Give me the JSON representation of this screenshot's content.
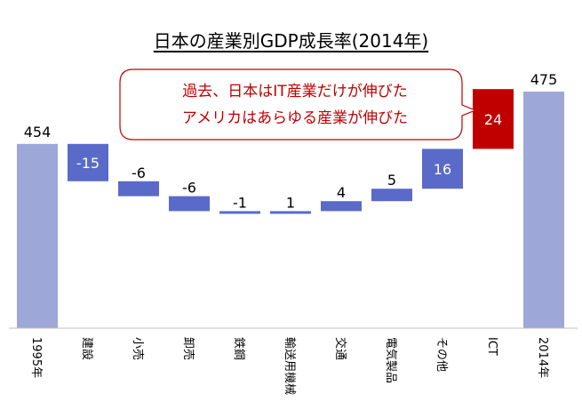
{
  "chart_data": {
    "type": "bar",
    "title": "日本の産業別GDP成長率(2014年)",
    "categories": [
      "1995年",
      "建設",
      "小売",
      "卸売",
      "鉄鋼",
      "輸送用機械",
      "交通",
      "電気製品",
      "その他",
      "ICT",
      "2014年"
    ],
    "values": [
      454,
      -15,
      -6,
      -6,
      -1,
      1,
      4,
      5,
      16,
      24,
      475
    ],
    "bar_kinds": [
      "total",
      "delta",
      "delta",
      "delta",
      "delta",
      "delta",
      "delta",
      "delta",
      "delta",
      "highlight",
      "total"
    ],
    "data_labels": [
      "454",
      "-15",
      "-6",
      "-6",
      "-1",
      "1",
      "4",
      "5",
      "16",
      "24",
      "475"
    ],
    "colors": {
      "total": "#9da8d8",
      "delta": "#5a6ac8",
      "highlight": "#c00000",
      "callout_text": "#c00000"
    },
    "ylim": [
      380,
      480
    ],
    "grid": false,
    "legend": "none"
  },
  "callout": {
    "line1": "過去、日本はIT産業だけが伸びた",
    "line2": "アメリカはあらゆる産業が伸びた"
  }
}
